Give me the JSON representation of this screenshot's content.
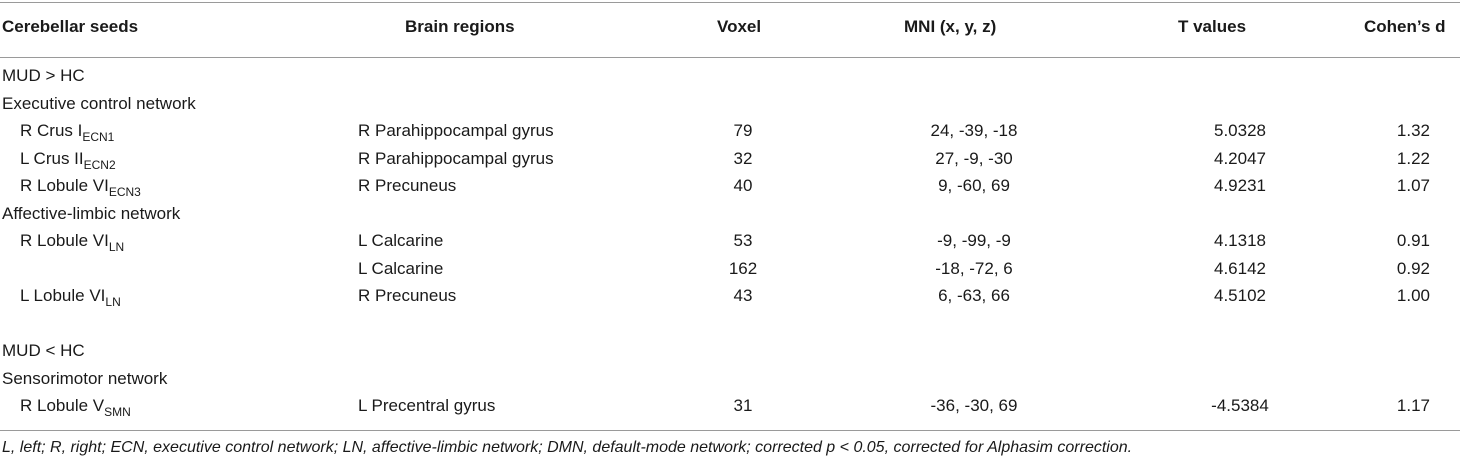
{
  "headers": {
    "seed": "Cerebellar seeds",
    "region": "Brain regions",
    "voxel": "Voxel",
    "mni": "MNI (x, y, z)",
    "t": "T values",
    "d": "Cohen’s d"
  },
  "sections": {
    "mud_gt_hc": "MUD > HC",
    "ecn": "Executive control network",
    "aln": "Affective-limbic network",
    "mud_lt_hc": "MUD < HC",
    "smn": "Sensorimotor network"
  },
  "rows": [
    {
      "seed": "R Crus I",
      "seed_sub": "ECN1",
      "region": "R Parahippocampal gyrus",
      "voxel": "79",
      "mni": "24, -39, -18",
      "t": "5.0328",
      "d": "1.32"
    },
    {
      "seed": "L Crus II",
      "seed_sub": "ECN2",
      "region": "R Parahippocampal gyrus",
      "voxel": "32",
      "mni": "27, -9, -30",
      "t": "4.2047",
      "d": "1.22"
    },
    {
      "seed": "R Lobule VI",
      "seed_sub": "ECN3",
      "region": "R Precuneus",
      "voxel": "40",
      "mni": "9, -60, 69",
      "t": "4.9231",
      "d": "1.07"
    },
    {
      "seed": "R Lobule VI",
      "seed_sub": "LN",
      "region": "L Calcarine",
      "voxel": "53",
      "mni": "-9, -99, -9",
      "t": "4.1318",
      "d": "0.91"
    },
    {
      "seed": "",
      "seed_sub": "",
      "region": "L Calcarine",
      "voxel": "162",
      "mni": "-18, -72, 6",
      "t": "4.6142",
      "d": "0.92"
    },
    {
      "seed": "L Lobule VI",
      "seed_sub": "LN",
      "region": "R Precuneus",
      "voxel": "43",
      "mni": "6, -63, 66",
      "t": "4.5102",
      "d": "1.00"
    },
    {
      "seed": "R Lobule V",
      "seed_sub": "SMN",
      "region": "L Precentral gyrus",
      "voxel": "31",
      "mni": "-36, -30, 69",
      "t": "-4.5384",
      "d": "1.17"
    }
  ],
  "footnote": "L, left; R, right; ECN, executive control network; LN, affective-limbic network; DMN, default-mode network; corrected p < 0.05, corrected for Alphasim correction."
}
